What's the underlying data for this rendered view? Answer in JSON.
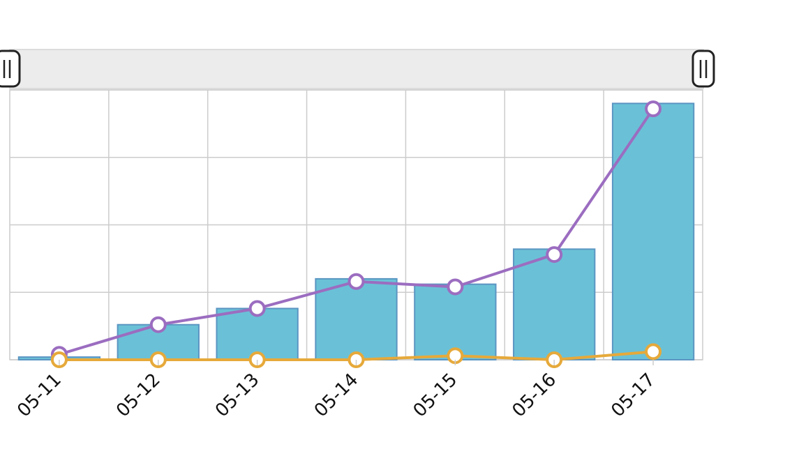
{
  "chart_data": {
    "type": "bar",
    "categories": [
      "05-11",
      "05-12",
      "05-13",
      "05-14",
      "05-15",
      "05-16",
      "05-17"
    ],
    "ylim": [
      0,
      100
    ],
    "grid": true,
    "gridlines_y": [
      0,
      25,
      50,
      75,
      100
    ],
    "series": [
      {
        "type": "bar",
        "values": [
          1,
          13,
          19,
          30,
          28,
          41,
          95
        ],
        "color": "#6ac1d7",
        "stroke": "#5b95c2"
      },
      {
        "type": "line",
        "values": [
          2,
          13,
          19,
          29,
          27,
          39,
          93
        ],
        "color": "#9b6dc0"
      },
      {
        "type": "line",
        "values": [
          0,
          0,
          0,
          0,
          1.5,
          0,
          3
        ],
        "color": "#e6a93a"
      }
    ]
  },
  "zoom_slider": {
    "start": 0,
    "end": 100
  }
}
